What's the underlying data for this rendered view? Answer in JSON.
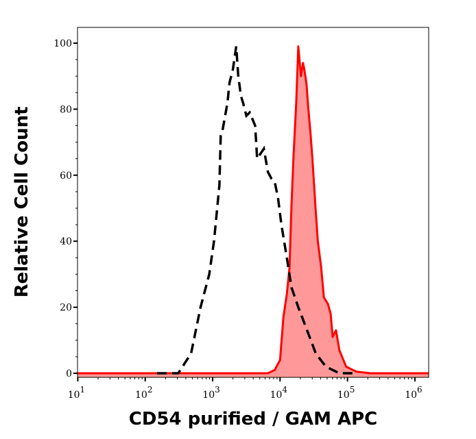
{
  "chart_data": {
    "type": "area",
    "title": "",
    "xlabel": "CD54 purified / GAM APC",
    "ylabel": "Relative Cell Count",
    "x_scale": "log",
    "xlim": [
      9.9,
      1600000
    ],
    "ylim": [
      0,
      105
    ],
    "grid": false,
    "x_tick_base": "10",
    "x_ticks": [
      {
        "value": 10,
        "exp": "1"
      },
      {
        "value": 100,
        "exp": "2"
      },
      {
        "value": 1000,
        "exp": "3"
      },
      {
        "value": 10000,
        "exp": "4"
      },
      {
        "value": 100000,
        "exp": "5"
      },
      {
        "value": 1000000,
        "exp": "6"
      }
    ],
    "y_ticks": [
      0,
      20,
      40,
      60,
      80,
      100
    ],
    "series": [
      {
        "style": "dashed-outline",
        "color": "#000000",
        "x": [
          150,
          195,
          309,
          479,
          661,
          891,
          1047,
          1259,
          1318,
          1413,
          1660,
          1778,
          1995,
          2239,
          2399,
          2630,
          2818,
          3162,
          3548,
          4266,
          4571,
          5754,
          6607,
          7413,
          8318,
          9333,
          10470,
          12590,
          14790,
          18620,
          26300,
          33880,
          47860,
          75860,
          134900
        ],
        "y": [
          0,
          0,
          0,
          6,
          20,
          30,
          40,
          57,
          72,
          74,
          82,
          88,
          92,
          99,
          90,
          84,
          82,
          78,
          79,
          75,
          65,
          68,
          61,
          59,
          58,
          53,
          45,
          35,
          26,
          20,
          12,
          6,
          2,
          0,
          0
        ]
      },
      {
        "style": "filled",
        "color": "#ff0000",
        "fill": "#ff9999",
        "x": [
          10,
          6607,
          8318,
          10000,
          11220,
          12590,
          13800,
          14790,
          15850,
          17380,
          18620,
          20420,
          21880,
          22910,
          24550,
          26300,
          28180,
          30200,
          33880,
          36310,
          40740,
          44670,
          51290,
          56230,
          60260,
          67610,
          75860,
          95500,
          134900,
          218800,
          1413000,
          1600000
        ],
        "y": [
          0,
          0,
          1,
          4,
          17,
          24,
          32,
          51,
          66,
          82,
          99,
          90,
          94,
          92,
          88,
          80,
          73,
          65,
          49,
          40,
          32,
          23,
          21,
          18,
          11,
          13,
          7,
          2,
          0.5,
          0,
          0,
          0
        ]
      }
    ]
  }
}
